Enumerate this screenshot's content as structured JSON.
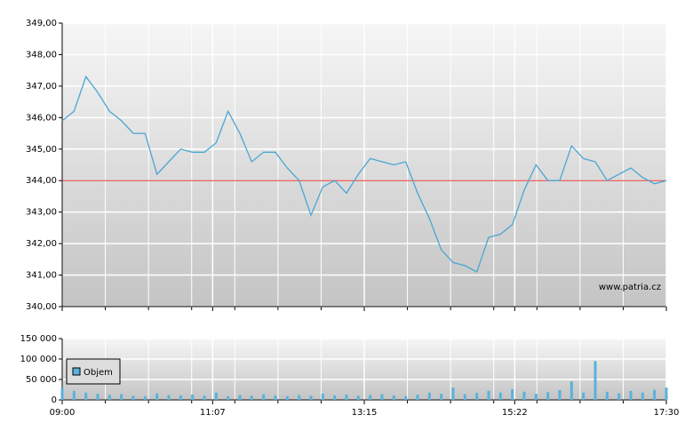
{
  "chart_data": [
    {
      "type": "line",
      "color": "#4aa6d2",
      "watermark": "www.patria.cz",
      "ref_line": 344,
      "ref_color": "#e03030",
      "x": [
        "09:00",
        "09:10",
        "09:20",
        "09:30",
        "09:40",
        "09:50",
        "10:00",
        "10:10",
        "10:20",
        "10:30",
        "10:40",
        "10:50",
        "11:00",
        "11:10",
        "11:20",
        "11:30",
        "11:40",
        "11:50",
        "12:00",
        "12:10",
        "12:20",
        "12:30",
        "12:40",
        "12:50",
        "13:00",
        "13:10",
        "13:20",
        "13:30",
        "13:40",
        "13:50",
        "14:00",
        "14:10",
        "14:20",
        "14:30",
        "14:40",
        "14:50",
        "15:00",
        "15:10",
        "15:20",
        "15:30",
        "15:40",
        "15:50",
        "16:00",
        "16:10",
        "16:20",
        "16:30",
        "16:40",
        "16:50",
        "17:00",
        "17:10",
        "17:20",
        "17:30"
      ],
      "values": [
        345.9,
        346.2,
        347.3,
        346.8,
        346.2,
        345.9,
        345.5,
        345.5,
        344.2,
        344.6,
        345.0,
        344.9,
        344.9,
        345.2,
        346.2,
        345.5,
        344.6,
        344.9,
        344.9,
        344.4,
        344.0,
        342.9,
        343.8,
        344.0,
        343.6,
        344.2,
        344.7,
        344.6,
        344.5,
        344.6,
        343.6,
        342.8,
        341.8,
        341.4,
        341.3,
        341.1,
        342.2,
        342.3,
        342.6,
        343.7,
        344.5,
        344.0,
        344.0,
        345.1,
        344.7,
        344.6,
        344.0,
        344.2,
        344.4,
        344.1,
        343.9,
        344.0
      ],
      "xlim": [
        "09:00",
        "17:30"
      ],
      "ylim": [
        340,
        349
      ],
      "yticks": [
        {
          "value": 340,
          "label": "340,00"
        },
        {
          "value": 341,
          "label": "341,00"
        },
        {
          "value": 342,
          "label": "342,00"
        },
        {
          "value": 343,
          "label": "343,00"
        },
        {
          "value": 344,
          "label": "344,00"
        },
        {
          "value": 345,
          "label": "345,00"
        },
        {
          "value": 346,
          "label": "346,00"
        },
        {
          "value": 347,
          "label": "347,00"
        },
        {
          "value": 348,
          "label": "348,00"
        },
        {
          "value": 349,
          "label": "349,00"
        }
      ],
      "grid": true
    },
    {
      "type": "bar",
      "x": [
        "09:00",
        "09:10",
        "09:20",
        "09:30",
        "09:40",
        "09:50",
        "10:00",
        "10:10",
        "10:20",
        "10:30",
        "10:40",
        "10:50",
        "11:00",
        "11:10",
        "11:20",
        "11:30",
        "11:40",
        "11:50",
        "12:00",
        "12:10",
        "12:20",
        "12:30",
        "12:40",
        "12:50",
        "13:00",
        "13:10",
        "13:20",
        "13:30",
        "13:40",
        "13:50",
        "14:00",
        "14:10",
        "14:20",
        "14:30",
        "14:40",
        "14:50",
        "15:00",
        "15:10",
        "15:20",
        "15:30",
        "15:40",
        "15:50",
        "16:00",
        "16:10",
        "16:20",
        "16:30",
        "16:40",
        "16:50",
        "17:00",
        "17:10",
        "17:20",
        "17:30"
      ],
      "series": [
        {
          "name": "Objem",
          "color": "#5ab2da",
          "values": [
            30000,
            22000,
            18000,
            15000,
            12000,
            14000,
            10000,
            9000,
            16000,
            12000,
            11000,
            13000,
            10000,
            18000,
            9000,
            12000,
            10000,
            14000,
            11000,
            9000,
            12000,
            10000,
            15000,
            11000,
            13000,
            10000,
            12000,
            14000,
            11000,
            9000,
            13000,
            18000,
            15000,
            30000,
            14000,
            17000,
            22000,
            18000,
            26000,
            20000,
            15000,
            19000,
            24000,
            45000,
            18000,
            95000,
            20000,
            16000,
            22000,
            18000,
            25000,
            30000
          ]
        }
      ],
      "xlim": [
        "09:00",
        "17:30"
      ],
      "xticks": [
        "09:00",
        "11:07",
        "13:15",
        "15:22",
        "17:30"
      ],
      "ylim": [
        0,
        150000
      ],
      "yticks": [
        0,
        {
          "value": 50000,
          "label": "50 000"
        },
        {
          "value": 100000,
          "label": "100 000"
        },
        {
          "value": 150000,
          "label": "150 000"
        }
      ],
      "grid": true
    }
  ]
}
